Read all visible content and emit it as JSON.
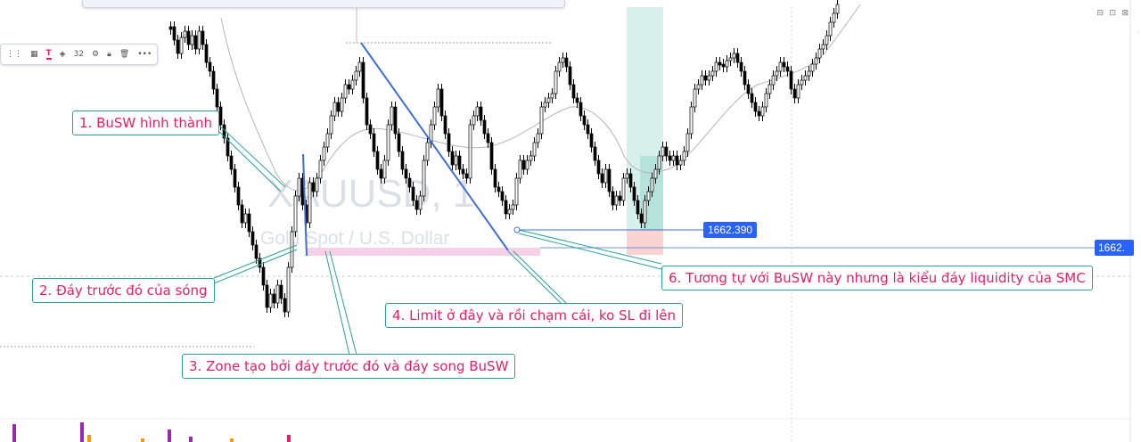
{
  "chart_data": {
    "type": "candlestick",
    "watermark_symbol": "XAUUSD, 1",
    "watermark_name": "Gold Spot / U.S. Dollar",
    "price_labels": [
      "1662.390",
      "1662."
    ],
    "close_up_color": "#ffffff",
    "close_down_color": "#000000",
    "annotations": [
      {
        "id": "busw",
        "text": "1. BuSW hình thành"
      },
      {
        "id": "prev-low",
        "text": "2. Đáy trước đó của sóng"
      },
      {
        "id": "zone",
        "text": "3. Zone tạo bởi đáy trước đó và đáy song BuSW"
      },
      {
        "id": "limit",
        "text": "4. Limit ở đây và rồi chạm cái, ko SL đi lên"
      },
      {
        "id": "similar",
        "text": "6. Tương tự với BuSW này nhưng là kiểu đáy liquidity của SMC"
      }
    ]
  },
  "colors": {
    "annotation_text": "#e91e63",
    "annotation_border": "#2aa198",
    "trendline": "#3f6fd6",
    "price_tag_primary": "#2962ff",
    "long_target_zone": "#b7e3dc",
    "long_stop_zone": "#f8c4c4",
    "zone_highlight": "#f4c4e0"
  },
  "toolbar": {
    "font_size_value": "32",
    "icons": [
      "templates-icon",
      "text-color-icon",
      "fill-icon",
      "settings-icon",
      "lock-icon",
      "trash-icon",
      "more-icon"
    ]
  }
}
